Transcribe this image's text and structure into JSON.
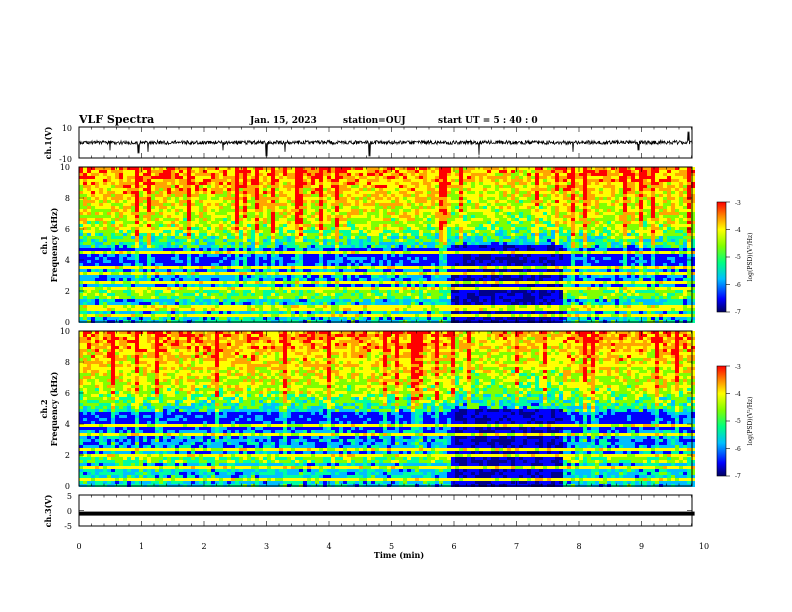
{
  "header": {
    "title": "VLF Spectra",
    "date": "Jan. 15, 2023",
    "station": "station=OUJ",
    "start_ut": "start  UT =   5 : 40 : 0"
  },
  "colors": {
    "scale": [
      "#00008b",
      "#0000ff",
      "#00bfff",
      "#00ffa0",
      "#7fff00",
      "#ffff00",
      "#ffa500",
      "#ff0000"
    ],
    "trace": "#000000",
    "frame": "#000000"
  },
  "chart_data": [
    {
      "type": "line",
      "panel": "ch1-waveform",
      "ylabel": "ch.1(V)",
      "ylim": [
        -10,
        10
      ],
      "yticks": [
        "10",
        "-10"
      ],
      "xlim": [
        0,
        10
      ],
      "baseline": 0,
      "noise_amplitude": 2.5,
      "spikes": [
        {
          "x": 0.5,
          "y": -5
        },
        {
          "x": 0.95,
          "y": -7
        },
        {
          "x": 1.1,
          "y": -6
        },
        {
          "x": 2.3,
          "y": -5
        },
        {
          "x": 3.0,
          "y": -9
        },
        {
          "x": 3.3,
          "y": -6
        },
        {
          "x": 4.65,
          "y": -9
        },
        {
          "x": 6.4,
          "y": -8
        },
        {
          "x": 7.9,
          "y": -6
        },
        {
          "x": 8.95,
          "y": -5
        },
        {
          "x": 9.75,
          "y": 7
        }
      ]
    },
    {
      "type": "heatmap",
      "panel": "ch1-spectrogram",
      "ylabel_line1": "ch.1",
      "ylabel_line2": "Frequency (kHz)",
      "ylim": [
        0,
        10
      ],
      "yticks": [
        "0",
        "2",
        "4",
        "6",
        "8",
        "10"
      ],
      "xlim": [
        0,
        10
      ],
      "colorbar": {
        "label": "log(PSD)(V²/Hz)",
        "range": [
          -7,
          -3
        ],
        "ticks": [
          "-3",
          "-4",
          "-5",
          "-6",
          "-7"
        ]
      },
      "quiet_interval": [
        5.9,
        7.7
      ],
      "hum_lines_khz": [
        0.5,
        1.0,
        2.2,
        2.7,
        3.2,
        3.6,
        4.5
      ]
    },
    {
      "type": "heatmap",
      "panel": "ch2-spectrogram",
      "ylabel_line1": "ch.2",
      "ylabel_line2": "Frequency (kHz)",
      "ylim": [
        0,
        10
      ],
      "yticks": [
        "0",
        "2",
        "4",
        "6",
        "8",
        "10"
      ],
      "xlim": [
        0,
        10
      ],
      "colorbar": {
        "label": "log(PSD)(V²/Hz)",
        "range": [
          -7,
          -3
        ],
        "ticks": [
          "-3",
          "-4",
          "-5",
          "-6",
          "-7"
        ]
      },
      "quiet_interval": [
        5.9,
        7.7
      ],
      "hum_lines_khz": [
        0.6,
        1.2,
        2.0,
        2.5,
        3.4,
        4.0,
        7.9
      ]
    },
    {
      "type": "line",
      "panel": "ch3-waveform",
      "ylabel": "ch.3(V)",
      "ylim": [
        -5,
        5
      ],
      "yticks": [
        "5",
        "0",
        "-5"
      ],
      "xlim": [
        0,
        9.85
      ],
      "value": -1.0,
      "xlabel": "Time (min)",
      "xticks": [
        "0",
        "1",
        "2",
        "3",
        "4",
        "5",
        "6",
        "7",
        "8",
        "9",
        "10"
      ]
    }
  ]
}
